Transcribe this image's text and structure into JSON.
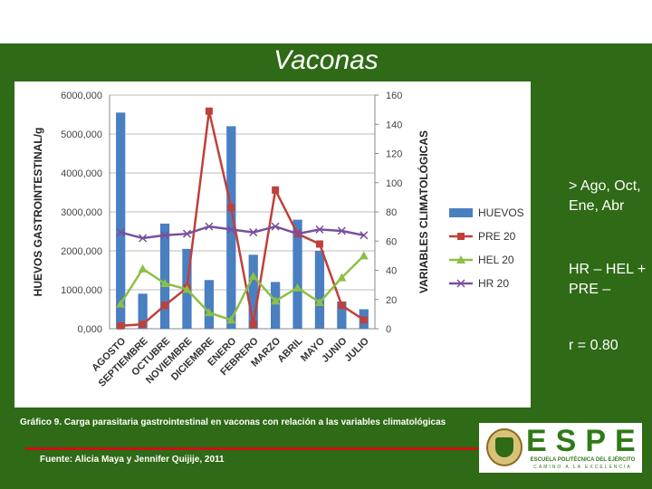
{
  "slide": {
    "title": "Vaconas",
    "notes": [
      "> Ago, Oct, Ene, Abr",
      "HR – HEL + PRE –",
      "r = 0.80"
    ],
    "caption": "Gráfico 9. Carga parasitaria gastrointestinal en vaconas con relación a las variables climatológicas",
    "source": "Fuente: Alicia Maya y Jennifer Quijije, 2011",
    "logo": {
      "word": "ESPE",
      "line1": "ESCUELA POLITÉCNICA DEL EJÉRCITO",
      "line2": "CAMINO A LA EXCELENCIA"
    },
    "colors": {
      "background": "#2f6a16",
      "rule": "#cc1111"
    }
  },
  "chart_data": {
    "type": "bar",
    "title": "",
    "categories": [
      "AGOSTO",
      "SEPTIEMBRE",
      "OCTUBRE",
      "NOVIEMBRE",
      "DICIEMBRE",
      "ENERO",
      "FEBRERO",
      "MARZO",
      "ABRIL",
      "MAYO",
      "JUNIO",
      "JULIO"
    ],
    "ylabel_left": "HUEVOS GASTROINTESTINAL/g",
    "ylabel_right": "VARIABLES CLIMATOLÓGICAS",
    "ylim_left": [
      0,
      6000
    ],
    "ylim_right": [
      0,
      160
    ],
    "yticks_left": [
      "0,000",
      "1000,000",
      "2000,000",
      "3000,000",
      "4000,000",
      "5000,000",
      "6000,000"
    ],
    "yticks_right": [
      "0",
      "20",
      "40",
      "60",
      "80",
      "100",
      "120",
      "140",
      "160"
    ],
    "legend_position": "right",
    "series": [
      {
        "name": "HUEVOS",
        "kind": "bar",
        "axis": "left",
        "color": "#4a7fc1",
        "values": [
          5550,
          900,
          2700,
          2050,
          1250,
          5200,
          1900,
          1200,
          2800,
          2000,
          700,
          500
        ]
      },
      {
        "name": "PRE 20",
        "kind": "line",
        "axis": "right",
        "color": "#c0403a",
        "values": [
          2,
          3,
          16,
          28,
          149,
          83,
          3,
          95,
          65,
          58,
          16,
          6
        ]
      },
      {
        "name": "HEL 20",
        "kind": "line",
        "axis": "right",
        "color": "#8cbf45",
        "values": [
          17,
          41,
          31,
          27,
          11,
          6,
          36,
          19,
          28,
          18,
          35,
          50
        ]
      },
      {
        "name": "HR 20",
        "kind": "line",
        "axis": "right",
        "color": "#7a4f9e",
        "values": [
          66,
          62,
          64,
          65,
          70,
          68,
          66,
          70,
          65,
          68,
          67,
          64
        ]
      }
    ]
  }
}
